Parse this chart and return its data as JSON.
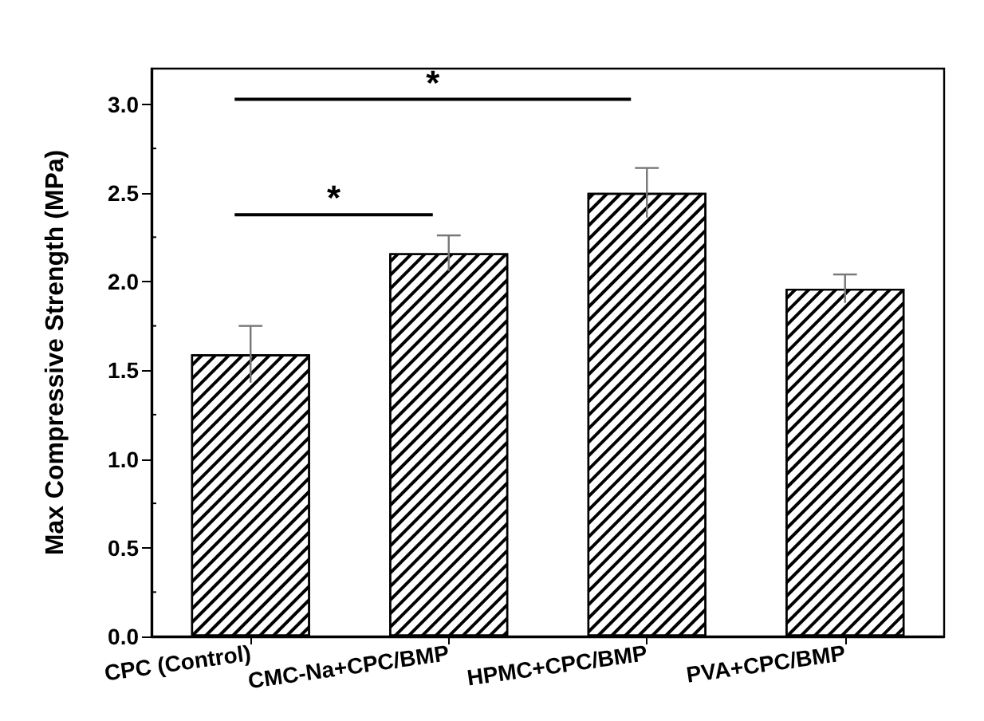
{
  "chart_data": {
    "type": "bar",
    "ylabel": "Max Compressive Strength (MPa)",
    "categories": [
      "CPC (Control)",
      "CMC-Na+CPC/BMP",
      "HPMC+CPC/BMP",
      "PVA+CPC/BMP"
    ],
    "values": [
      1.59,
      2.16,
      2.5,
      1.96
    ],
    "errors": [
      0.16,
      0.1,
      0.14,
      0.08
    ],
    "color": "#000000",
    "ylim": [
      0,
      3.2
    ],
    "yticks": [
      {
        "value": 0,
        "label": "0.0"
      },
      0.5,
      {
        "value": 1,
        "label": "1.0"
      },
      1.5,
      {
        "value": 2,
        "label": "2.0"
      },
      2.5,
      {
        "value": 3,
        "label": "3.0"
      }
    ],
    "annotations": [
      "*",
      "*"
    ],
    "grid": false
  }
}
